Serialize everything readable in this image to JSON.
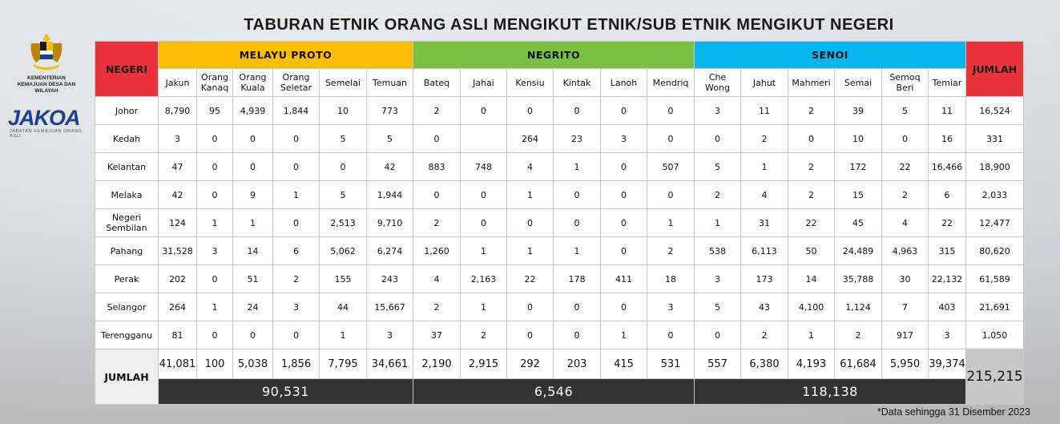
{
  "title": "TABURAN ETNIK ORANG ASLI MENGIKUT ETNIK/SUB ETNIK MENGIKUT NEGERI",
  "logo": {
    "ministry_line1": "KEMENTERIAN",
    "ministry_line2": "KEMAJUAN DESA DAN WILAYAH",
    "jakoa": "JAKOA",
    "jakoa_sub": "JABATAN KEMAJUAN ORANG ASLI"
  },
  "headers": {
    "negeri": "NEGERI",
    "jumlah": "JUMLAH",
    "groups": [
      {
        "name": "MELAYU PROTO",
        "color": "#fcbd04"
      },
      {
        "name": "NEGRITO",
        "color": "#7cbf42"
      },
      {
        "name": "SENOI",
        "color": "#08b5ef"
      }
    ]
  },
  "columns": [
    [
      "Jakun"
    ],
    [
      "Orang",
      "Kanaq"
    ],
    [
      "Orang",
      "Kuala"
    ],
    [
      "Orang",
      "Seletar"
    ],
    [
      "Semelai"
    ],
    [
      "Temuan"
    ],
    [
      "Bateq"
    ],
    [
      "Jahai"
    ],
    [
      "Kensiu"
    ],
    [
      "Kintak"
    ],
    [
      "Lanoh"
    ],
    [
      "Mendriq"
    ],
    [
      "Che",
      "Wong"
    ],
    [
      "Jahut"
    ],
    [
      "Mahmeri"
    ],
    [
      "Semai"
    ],
    [
      "Semoq",
      "Beri"
    ],
    [
      "Temiar"
    ]
  ],
  "rows": [
    {
      "state": [
        "Johor"
      ],
      "values": [
        "8,790",
        "95",
        "4,939",
        "1,844",
        "10",
        "773",
        "2",
        "0",
        "0",
        "0",
        "0",
        "0",
        "3",
        "11",
        "2",
        "39",
        "5",
        "11"
      ],
      "total": "16,524"
    },
    {
      "state": [
        "Kedah"
      ],
      "values": [
        "3",
        "0",
        "0",
        "0",
        "5",
        "5",
        "0",
        "",
        "264",
        "23",
        "3",
        "0",
        "0",
        "2",
        "0",
        "10",
        "0",
        "16"
      ],
      "total": "331"
    },
    {
      "state": [
        "Kelantan"
      ],
      "values": [
        "47",
        "0",
        "0",
        "0",
        "0",
        "42",
        "883",
        "748",
        "4",
        "1",
        "0",
        "507",
        "5",
        "1",
        "2",
        "172",
        "22",
        "16,466"
      ],
      "total": "18,900"
    },
    {
      "state": [
        "Melaka"
      ],
      "values": [
        "42",
        "0",
        "9",
        "1",
        "5",
        "1,944",
        "0",
        "0",
        "1",
        "0",
        "0",
        "0",
        "2",
        "4",
        "2",
        "15",
        "2",
        "6"
      ],
      "total": "2,033"
    },
    {
      "state": [
        "Negeri",
        "Sembilan"
      ],
      "values": [
        "124",
        "1",
        "1",
        "0",
        "2,513",
        "9,710",
        "2",
        "0",
        "0",
        "0",
        "0",
        "1",
        "1",
        "31",
        "22",
        "45",
        "4",
        "22"
      ],
      "total": "12,477"
    },
    {
      "state": [
        "Pahang"
      ],
      "values": [
        "31,528",
        "3",
        "14",
        "6",
        "5,062",
        "6,274",
        "1,260",
        "1",
        "1",
        "1",
        "0",
        "2",
        "538",
        "6,113",
        "50",
        "24,489",
        "4,963",
        "315"
      ],
      "total": "80,620"
    },
    {
      "state": [
        "Perak"
      ],
      "values": [
        "202",
        "0",
        "51",
        "2",
        "155",
        "243",
        "4",
        "2,163",
        "22",
        "178",
        "411",
        "18",
        "3",
        "173",
        "14",
        "35,788",
        "30",
        "22,132"
      ],
      "total": "61,589"
    },
    {
      "state": [
        "Selangor"
      ],
      "values": [
        "264",
        "1",
        "24",
        "3",
        "44",
        "15,667",
        "2",
        "1",
        "0",
        "0",
        "0",
        "3",
        "5",
        "43",
        "4,100",
        "1,124",
        "7",
        "403"
      ],
      "total": "21,691"
    },
    {
      "state": [
        "Terengganu"
      ],
      "values": [
        "81",
        "0",
        "0",
        "0",
        "1",
        "3",
        "37",
        "2",
        "0",
        "0",
        "1",
        "0",
        "0",
        "2",
        "1",
        "2",
        "917",
        "3"
      ],
      "total": "1,050"
    }
  ],
  "totals": {
    "label": "JUMLAH",
    "values": [
      "41,081",
      "100",
      "5,038",
      "1,856",
      "7,795",
      "34,661",
      "2,190",
      "2,915",
      "292",
      "203",
      "415",
      "531",
      "557",
      "6,380",
      "4,193",
      "61,684",
      "5,950",
      "39,374"
    ],
    "grand": "215,215",
    "groups": [
      "90,531",
      "6,546",
      "118,138"
    ]
  },
  "footnote": "*Data sehingga 31 Disember 2023"
}
